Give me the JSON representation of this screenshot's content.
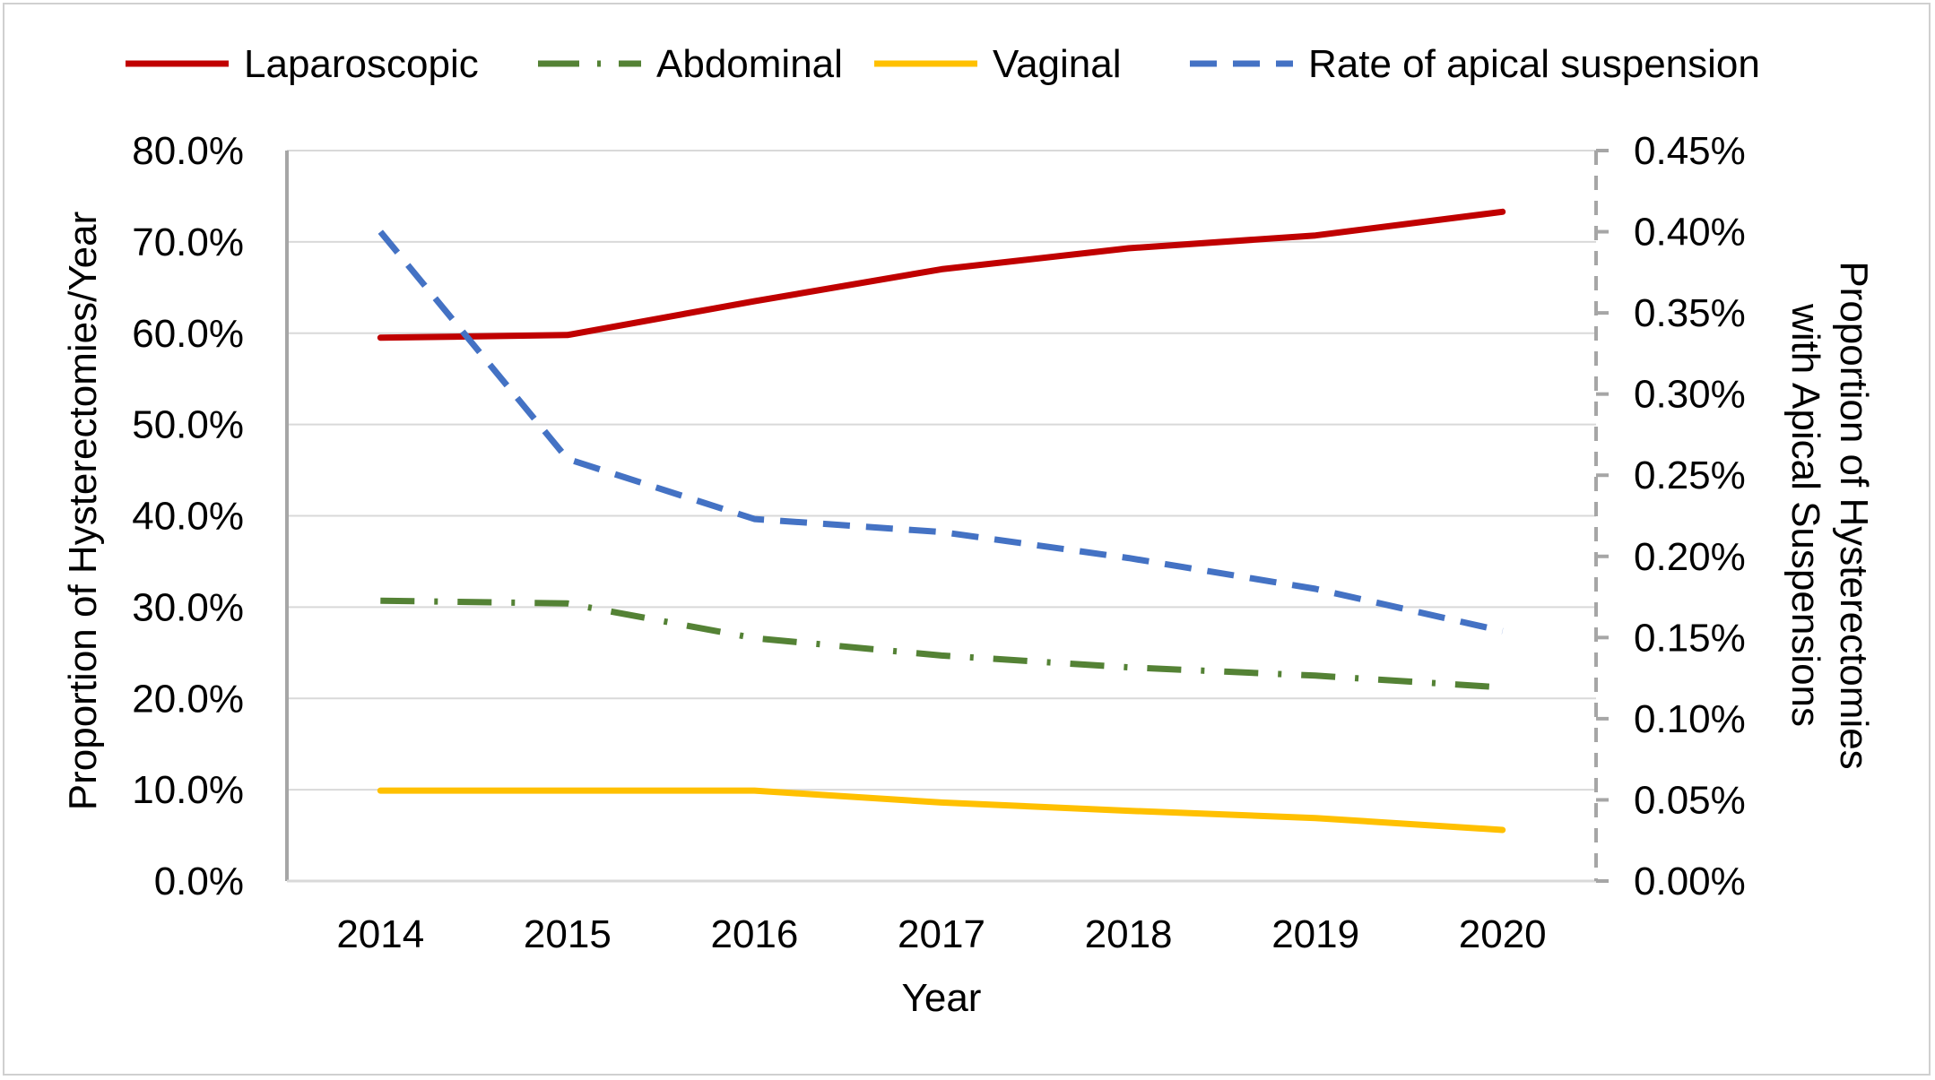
{
  "chart_data": {
    "type": "line",
    "categories": [
      "2014",
      "2015",
      "2016",
      "2017",
      "2018",
      "2019",
      "2020"
    ],
    "xlabel": "Year",
    "ylabel": "Proportion of Hysterectomies/Year",
    "ylabel_right_line1": "Proportion of Hysterectomies",
    "ylabel_right_line2": "with Apical Suspensions",
    "ylim": [
      0,
      80
    ],
    "y_ticks": [
      "0.0%",
      "10.0%",
      "20.0%",
      "30.0%",
      "40.0%",
      "50.0%",
      "60.0%",
      "70.0%",
      "80.0%"
    ],
    "y2lim": [
      0,
      0.45
    ],
    "y2_ticks": [
      "0.00%",
      "0.05%",
      "0.10%",
      "0.15%",
      "0.20%",
      "0.25%",
      "0.30%",
      "0.35%",
      "0.40%",
      "0.45%"
    ],
    "grid": true,
    "legend_position": "top",
    "series": [
      {
        "name": "Laparoscopic",
        "axis": "left",
        "color": "#C00000",
        "style": "solid",
        "values": [
          59.5,
          59.8,
          63.5,
          67.0,
          69.3,
          70.7,
          73.3
        ]
      },
      {
        "name": "Abdominal",
        "axis": "left",
        "color": "#548235",
        "style": "dash-dot",
        "values": [
          30.7,
          30.4,
          26.6,
          24.7,
          23.4,
          22.5,
          21.2
        ]
      },
      {
        "name": "Vaginal",
        "axis": "left",
        "color": "#FFC000",
        "style": "solid",
        "values": [
          9.9,
          9.9,
          9.9,
          8.6,
          7.7,
          6.9,
          5.6
        ]
      },
      {
        "name": "Rate of apical suspension",
        "axis": "right",
        "color": "#4472C4",
        "style": "dashed",
        "values": [
          0.4,
          0.26,
          0.223,
          0.215,
          0.199,
          0.18,
          0.154
        ]
      }
    ]
  }
}
